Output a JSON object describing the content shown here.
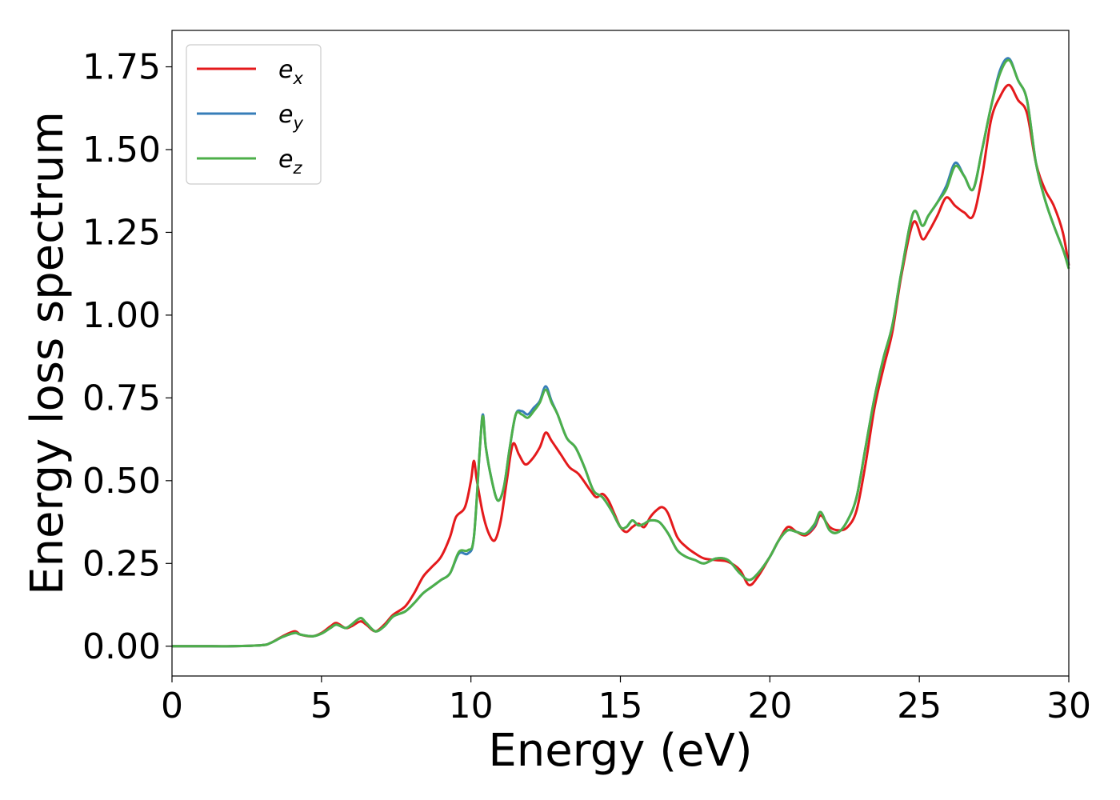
{
  "chart_data": {
    "type": "line",
    "xlabel": "Energy (eV)",
    "ylabel": "Energy loss spectrum",
    "xlim": [
      0,
      30
    ],
    "ylim": [
      -0.09,
      1.86
    ],
    "xticks": [
      "0",
      "5",
      "10",
      "15",
      "20",
      "25",
      "30"
    ],
    "yticks": [
      "0.00",
      "0.25",
      "0.50",
      "0.75",
      "1.00",
      "1.25",
      "1.50",
      "1.75"
    ],
    "grid": false,
    "legend_position": "top-left",
    "series": [
      {
        "name": "e",
        "subscript": "x",
        "color": "#e41a1c",
        "x": [
          0,
          1,
          2,
          3,
          3.3,
          3.7,
          4.1,
          4.3,
          4.7,
          5.0,
          5.3,
          5.5,
          5.8,
          6.0,
          6.3,
          6.5,
          6.8,
          7.1,
          7.4,
          7.8,
          8.1,
          8.4,
          8.7,
          9.0,
          9.3,
          9.5,
          9.8,
          10.0,
          10.1,
          10.2,
          10.4,
          10.6,
          10.8,
          11.0,
          11.2,
          11.4,
          11.6,
          11.8,
          12.0,
          12.3,
          12.5,
          12.7,
          13.0,
          13.3,
          13.6,
          14.0,
          14.2,
          14.4,
          14.6,
          14.8,
          15.0,
          15.2,
          15.4,
          15.6,
          15.8,
          16.0,
          16.2,
          16.4,
          16.6,
          16.9,
          17.2,
          17.5,
          17.8,
          18.2,
          18.6,
          19.0,
          19.3,
          19.6,
          20.0,
          20.3,
          20.6,
          20.9,
          21.2,
          21.5,
          21.7,
          22.0,
          22.3,
          22.6,
          22.9,
          23.2,
          23.5,
          23.8,
          24.1,
          24.4,
          24.8,
          25.1,
          25.3,
          25.6,
          25.9,
          26.2,
          26.5,
          26.8,
          27.1,
          27.4,
          27.7,
          28.0,
          28.3,
          28.6,
          28.9,
          29.2,
          29.5,
          29.8,
          30
        ],
        "values": [
          0,
          0,
          0,
          0.003,
          0.01,
          0.03,
          0.045,
          0.035,
          0.03,
          0.04,
          0.06,
          0.07,
          0.055,
          0.06,
          0.075,
          0.065,
          0.045,
          0.065,
          0.095,
          0.12,
          0.16,
          0.21,
          0.24,
          0.27,
          0.33,
          0.39,
          0.42,
          0.5,
          0.56,
          0.5,
          0.4,
          0.34,
          0.32,
          0.38,
          0.5,
          0.61,
          0.58,
          0.55,
          0.56,
          0.6,
          0.645,
          0.62,
          0.58,
          0.54,
          0.52,
          0.47,
          0.45,
          0.46,
          0.44,
          0.4,
          0.36,
          0.345,
          0.36,
          0.37,
          0.36,
          0.39,
          0.41,
          0.42,
          0.4,
          0.33,
          0.3,
          0.28,
          0.265,
          0.26,
          0.255,
          0.23,
          0.185,
          0.21,
          0.27,
          0.32,
          0.36,
          0.345,
          0.335,
          0.36,
          0.395,
          0.36,
          0.35,
          0.36,
          0.41,
          0.55,
          0.72,
          0.84,
          0.95,
          1.12,
          1.28,
          1.23,
          1.25,
          1.3,
          1.355,
          1.33,
          1.31,
          1.3,
          1.42,
          1.59,
          1.66,
          1.695,
          1.65,
          1.61,
          1.46,
          1.38,
          1.33,
          1.25,
          1.15
        ]
      },
      {
        "name": "e",
        "subscript": "y",
        "color": "#377eb8",
        "x": [
          0,
          1,
          2,
          3,
          3.3,
          3.7,
          4.1,
          4.3,
          4.7,
          5.0,
          5.3,
          5.5,
          5.8,
          6.0,
          6.3,
          6.5,
          6.8,
          7.1,
          7.4,
          7.8,
          8.1,
          8.4,
          8.7,
          9.0,
          9.3,
          9.6,
          9.9,
          10.1,
          10.3,
          10.4,
          10.5,
          10.7,
          10.9,
          11.1,
          11.3,
          11.5,
          11.7,
          11.9,
          12.1,
          12.3,
          12.5,
          12.7,
          12.9,
          13.2,
          13.5,
          13.8,
          14.1,
          14.4,
          14.7,
          15.0,
          15.2,
          15.4,
          15.6,
          15.8,
          16.0,
          16.3,
          16.6,
          16.9,
          17.2,
          17.5,
          17.8,
          18.2,
          18.6,
          19.0,
          19.3,
          19.6,
          20.0,
          20.3,
          20.6,
          20.9,
          21.2,
          21.5,
          21.7,
          22.0,
          22.3,
          22.6,
          22.9,
          23.2,
          23.5,
          23.8,
          24.1,
          24.4,
          24.8,
          25.1,
          25.3,
          25.6,
          25.9,
          26.2,
          26.5,
          26.8,
          27.1,
          27.4,
          27.7,
          28.0,
          28.3,
          28.6,
          28.9,
          29.2,
          29.5,
          29.8,
          30
        ],
        "values": [
          0,
          0,
          0,
          0.003,
          0.01,
          0.028,
          0.04,
          0.035,
          0.03,
          0.038,
          0.055,
          0.065,
          0.055,
          0.065,
          0.085,
          0.07,
          0.045,
          0.06,
          0.09,
          0.105,
          0.13,
          0.16,
          0.18,
          0.2,
          0.22,
          0.28,
          0.28,
          0.33,
          0.6,
          0.7,
          0.6,
          0.5,
          0.44,
          0.48,
          0.6,
          0.7,
          0.71,
          0.7,
          0.72,
          0.74,
          0.785,
          0.74,
          0.7,
          0.63,
          0.6,
          0.54,
          0.47,
          0.45,
          0.41,
          0.36,
          0.36,
          0.38,
          0.365,
          0.37,
          0.38,
          0.375,
          0.34,
          0.29,
          0.27,
          0.26,
          0.25,
          0.265,
          0.26,
          0.22,
          0.2,
          0.22,
          0.27,
          0.32,
          0.35,
          0.345,
          0.34,
          0.365,
          0.405,
          0.35,
          0.345,
          0.38,
          0.45,
          0.6,
          0.75,
          0.87,
          0.97,
          1.13,
          1.31,
          1.27,
          1.3,
          1.34,
          1.39,
          1.46,
          1.42,
          1.38,
          1.5,
          1.63,
          1.74,
          1.775,
          1.71,
          1.65,
          1.46,
          1.35,
          1.27,
          1.2,
          1.15
        ]
      },
      {
        "name": "e",
        "subscript": "z",
        "color": "#4daf4a",
        "x": [
          0,
          1,
          2,
          3,
          3.3,
          3.7,
          4.1,
          4.3,
          4.7,
          5.0,
          5.3,
          5.5,
          5.8,
          6.0,
          6.3,
          6.5,
          6.8,
          7.1,
          7.4,
          7.8,
          8.1,
          8.4,
          8.7,
          9.0,
          9.3,
          9.6,
          9.9,
          10.1,
          10.3,
          10.4,
          10.5,
          10.7,
          10.9,
          11.1,
          11.3,
          11.5,
          11.7,
          11.9,
          12.1,
          12.3,
          12.5,
          12.7,
          12.9,
          13.2,
          13.5,
          13.8,
          14.1,
          14.4,
          14.7,
          15.0,
          15.2,
          15.4,
          15.6,
          15.8,
          16.0,
          16.3,
          16.6,
          16.9,
          17.2,
          17.5,
          17.8,
          18.2,
          18.6,
          19.0,
          19.3,
          19.6,
          20.0,
          20.3,
          20.6,
          20.9,
          21.2,
          21.5,
          21.7,
          22.0,
          22.3,
          22.6,
          22.9,
          23.2,
          23.5,
          23.8,
          24.1,
          24.4,
          24.8,
          25.1,
          25.3,
          25.6,
          25.9,
          26.2,
          26.5,
          26.8,
          27.1,
          27.4,
          27.7,
          28.0,
          28.3,
          28.6,
          28.9,
          29.2,
          29.5,
          29.8,
          30
        ],
        "values": [
          0,
          0,
          0,
          0.003,
          0.01,
          0.028,
          0.04,
          0.035,
          0.03,
          0.038,
          0.055,
          0.065,
          0.055,
          0.065,
          0.085,
          0.07,
          0.045,
          0.06,
          0.09,
          0.105,
          0.13,
          0.16,
          0.18,
          0.2,
          0.22,
          0.285,
          0.29,
          0.33,
          0.6,
          0.695,
          0.6,
          0.5,
          0.44,
          0.48,
          0.6,
          0.7,
          0.7,
          0.69,
          0.71,
          0.735,
          0.775,
          0.735,
          0.7,
          0.63,
          0.6,
          0.54,
          0.47,
          0.45,
          0.41,
          0.36,
          0.36,
          0.38,
          0.365,
          0.37,
          0.38,
          0.375,
          0.34,
          0.29,
          0.27,
          0.26,
          0.25,
          0.265,
          0.26,
          0.22,
          0.2,
          0.22,
          0.27,
          0.32,
          0.35,
          0.345,
          0.34,
          0.37,
          0.405,
          0.35,
          0.345,
          0.38,
          0.45,
          0.6,
          0.75,
          0.87,
          0.97,
          1.13,
          1.31,
          1.27,
          1.3,
          1.34,
          1.38,
          1.45,
          1.42,
          1.38,
          1.5,
          1.63,
          1.73,
          1.77,
          1.71,
          1.65,
          1.46,
          1.35,
          1.27,
          1.2,
          1.14
        ]
      }
    ]
  }
}
